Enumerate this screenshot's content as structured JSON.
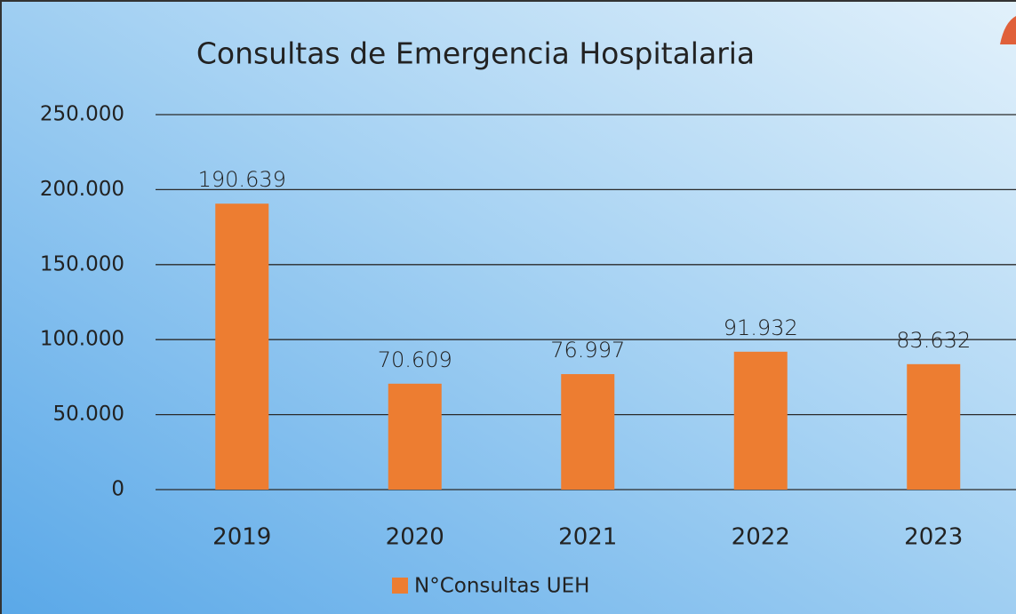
{
  "chart_data": {
    "type": "bar",
    "title": "Consultas de Emergencia Hospitalaria",
    "categories": [
      "2019",
      "2020",
      "2021",
      "2022",
      "2023"
    ],
    "series": [
      {
        "name": "N°Consultas UEH",
        "color": "#ed7d31",
        "values": [
          190639,
          70609,
          76997,
          91932,
          83632
        ],
        "value_labels": [
          "190.639",
          "70.609",
          "76.997",
          "91.932",
          "83.632"
        ]
      }
    ],
    "ylim": [
      0,
      250000
    ],
    "yticks": [
      0,
      {
        "value": 50000,
        "label": "50.000"
      },
      {
        "value": 100000,
        "label": "100.000"
      },
      {
        "value": 150000,
        "label": "150.000"
      },
      {
        "value": 200000,
        "label": "200.000"
      },
      {
        "value": 250000,
        "label": "250.000"
      }
    ],
    "grid": true,
    "legend": "bottom"
  }
}
